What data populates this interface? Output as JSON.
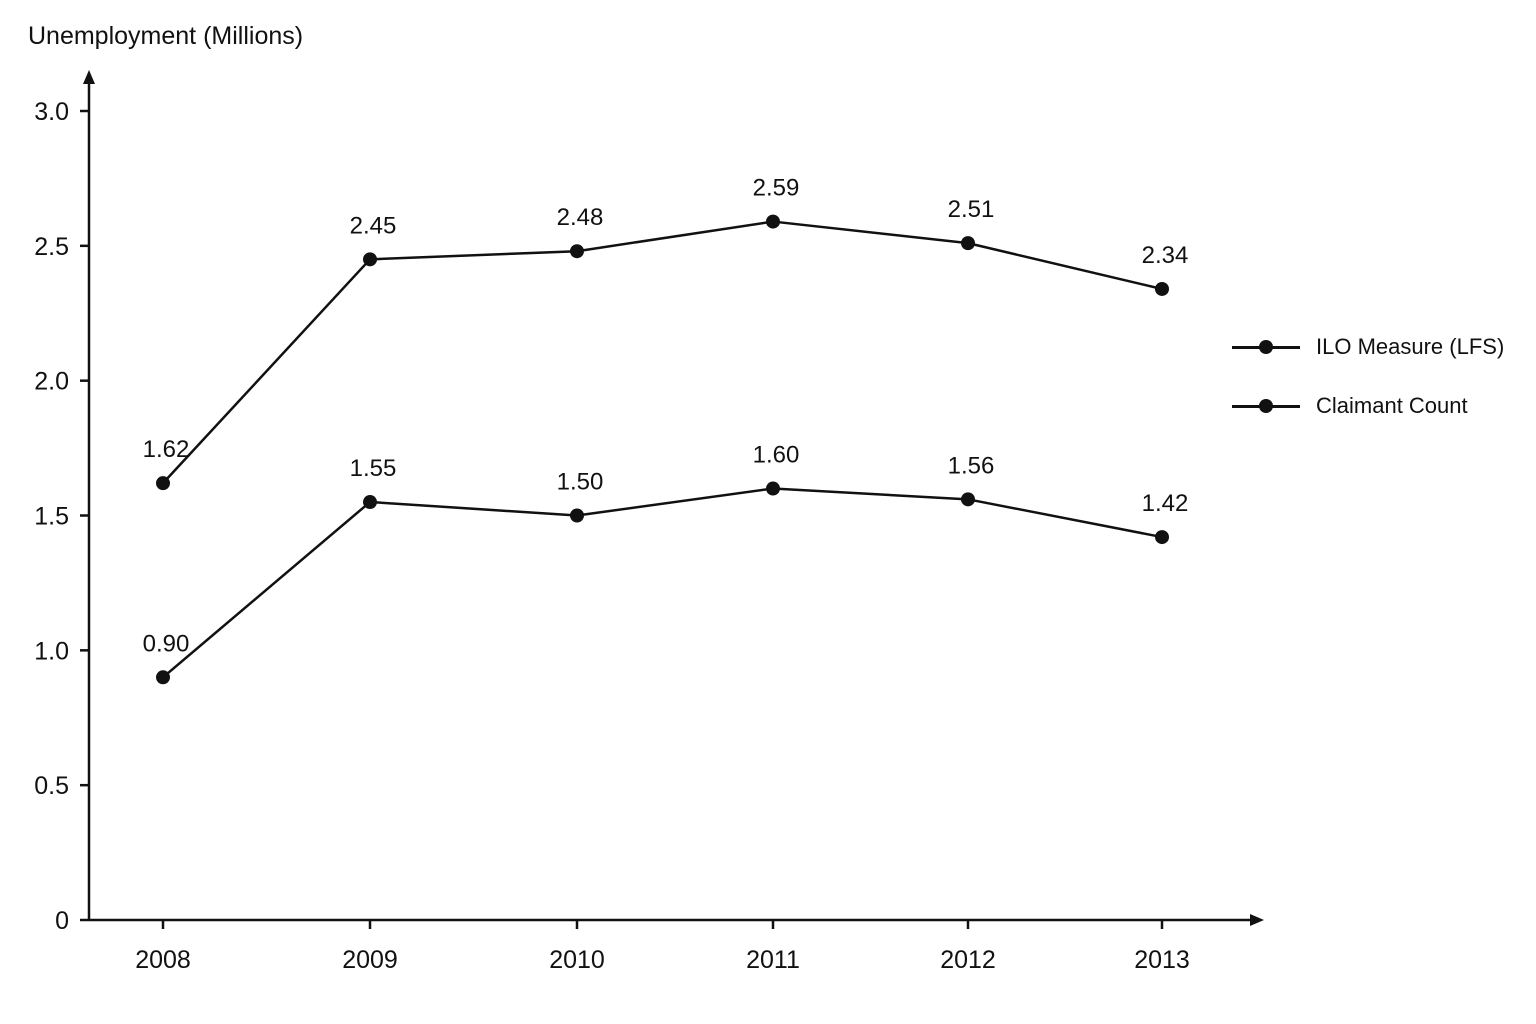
{
  "chart_data": {
    "type": "line",
    "title": "",
    "xlabel": "",
    "ylabel": "Unemployment (Millions)",
    "categories": [
      "2008",
      "2009",
      "2010",
      "2011",
      "2012",
      "2013"
    ],
    "ylim": [
      0,
      3.0
    ],
    "yticks": [
      "0",
      "0.5",
      "1.0",
      "1.5",
      "2.0",
      "2.5",
      "3.0"
    ],
    "grid": false,
    "legend_position": "right",
    "series": [
      {
        "name": "ILO Measure (LFS)",
        "values": [
          1.62,
          2.45,
          2.48,
          2.59,
          2.51,
          2.34
        ],
        "labels": [
          "1.62",
          "2.45",
          "2.48",
          "2.59",
          "2.51",
          "2.34"
        ],
        "color": "#111111"
      },
      {
        "name": "Claimant Count",
        "values": [
          0.9,
          1.55,
          1.5,
          1.6,
          1.56,
          1.42
        ],
        "labels": [
          "0.90",
          "1.55",
          "1.50",
          "1.60",
          "1.56",
          "1.42"
        ],
        "color": "#111111"
      }
    ]
  }
}
